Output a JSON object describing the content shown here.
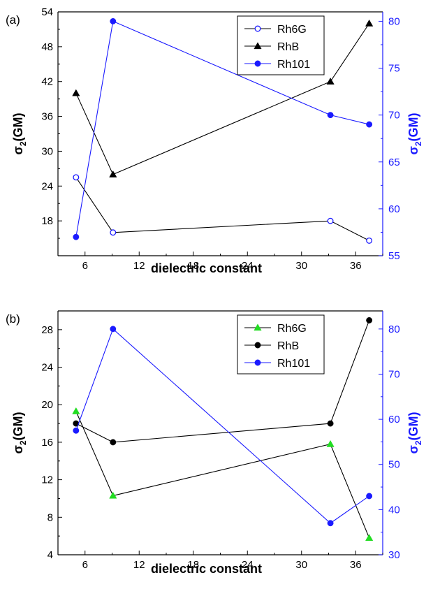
{
  "chart_data": [
    {
      "type": "line",
      "panel_label": "(a)",
      "xlabel": "dielectric constant",
      "ylabel_main": "σ",
      "ylabel_sub": "2",
      "ylabel_unit": "(GM)",
      "xlim": [
        3,
        39
      ],
      "xticks": [
        6,
        12,
        18,
        24,
        30,
        36
      ],
      "ylim_left": [
        12,
        54
      ],
      "yticks_left": [
        18,
        24,
        30,
        36,
        42,
        48,
        54
      ],
      "ylim_right": [
        55,
        81
      ],
      "yticks_right": [
        55,
        60,
        65,
        70,
        75,
        80
      ],
      "right_axis_color": "#1a1aff",
      "legend_position": "top-right",
      "series": [
        {
          "name": "Rh6G",
          "axis": "left",
          "marker": "circle-open",
          "color": "#1a1aff",
          "line_color": "#000000",
          "x": [
            5.0,
            9.1,
            33.2,
            37.5
          ],
          "y": [
            25.5,
            16.0,
            18.0,
            14.6
          ]
        },
        {
          "name": "RhB",
          "axis": "left",
          "marker": "triangle-filled",
          "color": "#000000",
          "line_color": "#000000",
          "x": [
            5.0,
            9.1,
            33.2,
            37.5
          ],
          "y": [
            40.0,
            26.0,
            42.0,
            52.0
          ]
        },
        {
          "name": "Rh101",
          "axis": "right",
          "marker": "circle-filled",
          "color": "#1a1aff",
          "line_color": "#1a1aff",
          "x": [
            5.0,
            9.1,
            33.2,
            37.5
          ],
          "y": [
            57.0,
            80.0,
            70.0,
            69.0
          ]
        }
      ]
    },
    {
      "type": "line",
      "panel_label": "(b)",
      "xlabel": "dielectric constant",
      "ylabel_main": "σ",
      "ylabel_sub": "2",
      "ylabel_unit": "(GM)",
      "xlim": [
        3,
        39
      ],
      "xticks": [
        6,
        12,
        18,
        24,
        30,
        36
      ],
      "ylim_left": [
        4,
        30
      ],
      "yticks_left": [
        4,
        8,
        12,
        16,
        20,
        24,
        28
      ],
      "ylim_right": [
        30,
        84
      ],
      "yticks_right": [
        30,
        40,
        50,
        60,
        70,
        80
      ],
      "right_axis_color": "#1a1aff",
      "legend_position": "top-right",
      "series": [
        {
          "name": "Rh6G",
          "axis": "left",
          "marker": "triangle-filled",
          "color": "#22dd22",
          "line_color": "#000000",
          "x": [
            5.0,
            9.1,
            33.2,
            37.5
          ],
          "y": [
            19.3,
            10.3,
            15.8,
            5.8
          ]
        },
        {
          "name": "RhB",
          "axis": "left",
          "marker": "circle-filled",
          "color": "#000000",
          "line_color": "#000000",
          "x": [
            5.0,
            9.1,
            33.2,
            37.5
          ],
          "y": [
            18.0,
            16.0,
            18.0,
            29.0
          ]
        },
        {
          "name": "Rh101",
          "axis": "right",
          "marker": "circle-filled",
          "color": "#1a1aff",
          "line_color": "#1a1aff",
          "x": [
            5.0,
            9.1,
            33.2,
            37.5
          ],
          "y": [
            57.5,
            80.0,
            37.0,
            43.0
          ]
        }
      ]
    }
  ]
}
